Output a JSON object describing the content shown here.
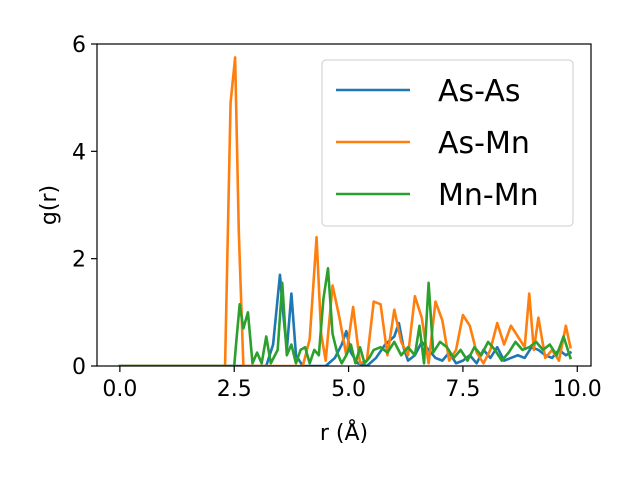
{
  "chart_data": {
    "type": "line",
    "xlabel": "r (Å)",
    "ylabel": "g(r)",
    "xlim": [
      -0.5,
      10.3
    ],
    "ylim": [
      0,
      6
    ],
    "x_ticks": [
      0.0,
      2.5,
      5.0,
      7.5,
      10.0
    ],
    "x_tick_labels": [
      "0.0",
      "2.5",
      "5.0",
      "7.5",
      "10.0"
    ],
    "y_ticks": [
      0,
      2,
      4,
      6
    ],
    "y_tick_labels": [
      "0",
      "2",
      "4",
      "6"
    ],
    "legend_position": "top-right",
    "grid": false,
    "series": [
      {
        "name": "As-As",
        "color": "#1f77b4",
        "x": [
          0,
          0.5,
          1.0,
          1.5,
          2.0,
          2.5,
          3.0,
          3.2,
          3.35,
          3.5,
          3.58,
          3.65,
          3.75,
          3.85,
          4.0,
          4.3,
          4.5,
          4.7,
          4.85,
          4.95,
          5.05,
          5.2,
          5.4,
          5.6,
          5.8,
          6.0,
          6.1,
          6.2,
          6.3,
          6.45,
          6.6,
          6.75,
          6.9,
          7.05,
          7.2,
          7.35,
          7.5,
          7.65,
          7.8,
          7.95,
          8.1,
          8.25,
          8.4,
          8.55,
          8.7,
          8.85,
          9.0,
          9.15,
          9.3,
          9.45,
          9.6,
          9.75,
          9.85
        ],
        "values": [
          0,
          0,
          0,
          0,
          0,
          0,
          0,
          0,
          0.4,
          1.7,
          0.9,
          0.3,
          1.35,
          0.2,
          0,
          0,
          0,
          0.15,
          0.4,
          0.65,
          0.25,
          0.05,
          0,
          0.15,
          0.4,
          0.55,
          0.8,
          0.35,
          0.1,
          0.2,
          0.45,
          0.3,
          0.15,
          0.1,
          0.25,
          0.05,
          0.1,
          0.2,
          0.05,
          0.3,
          0.15,
          0.35,
          0.1,
          0.15,
          0.2,
          0.15,
          0.35,
          0.3,
          0.2,
          0.15,
          0.3,
          0.2,
          0.25
        ]
      },
      {
        "name": "As-Mn",
        "color": "#ff7f0e",
        "x": [
          0,
          0.5,
          1.0,
          1.5,
          2.0,
          2.3,
          2.42,
          2.52,
          2.6,
          2.7,
          2.85,
          3.0,
          3.5,
          4.0,
          4.15,
          4.3,
          4.4,
          4.5,
          4.65,
          4.8,
          4.95,
          5.1,
          5.25,
          5.4,
          5.55,
          5.7,
          5.85,
          6.0,
          6.15,
          6.3,
          6.45,
          6.6,
          6.75,
          6.9,
          7.05,
          7.2,
          7.35,
          7.5,
          7.65,
          7.8,
          7.95,
          8.1,
          8.25,
          8.4,
          8.55,
          8.7,
          8.85,
          8.95,
          9.05,
          9.15,
          9.3,
          9.45,
          9.6,
          9.75,
          9.85
        ],
        "values": [
          0,
          0,
          0,
          0,
          0,
          0,
          4.9,
          5.75,
          2.5,
          0,
          0,
          0,
          0,
          0,
          0.5,
          2.4,
          0.6,
          0.1,
          1.5,
          0.9,
          0.2,
          1.1,
          0.05,
          0.1,
          1.2,
          1.15,
          0.2,
          1.05,
          0.45,
          0.2,
          1.3,
          0.9,
          0.05,
          1.2,
          0.85,
          0.1,
          0.3,
          0.95,
          0.75,
          0.25,
          0.05,
          0.3,
          0.8,
          0.4,
          0.75,
          0.55,
          0.35,
          1.35,
          0.3,
          0.9,
          0.15,
          0.3,
          0.1,
          0.75,
          0.35
        ]
      },
      {
        "name": "Mn-Mn",
        "color": "#2ca02c",
        "x": [
          0,
          0.5,
          1.0,
          1.5,
          2.0,
          2.5,
          2.55,
          2.62,
          2.7,
          2.8,
          2.9,
          3.0,
          3.1,
          3.2,
          3.3,
          3.45,
          3.55,
          3.65,
          3.75,
          3.85,
          3.95,
          4.05,
          4.15,
          4.25,
          4.35,
          4.45,
          4.55,
          4.65,
          4.75,
          4.85,
          4.95,
          5.05,
          5.15,
          5.25,
          5.35,
          5.45,
          5.55,
          5.7,
          5.85,
          6.0,
          6.15,
          6.3,
          6.45,
          6.55,
          6.65,
          6.75,
          6.85,
          7.0,
          7.15,
          7.3,
          7.45,
          7.6,
          7.75,
          7.9,
          8.05,
          8.2,
          8.35,
          8.5,
          8.65,
          8.8,
          8.95,
          9.1,
          9.25,
          9.4,
          9.55,
          9.7,
          9.85
        ],
        "values": [
          0,
          0,
          0,
          0,
          0,
          0,
          0.5,
          1.15,
          0.7,
          1.0,
          0.05,
          0.25,
          0.05,
          0.55,
          0.05,
          0.3,
          1.55,
          0.2,
          0.4,
          0.05,
          0.3,
          0.35,
          0.05,
          0.3,
          0.2,
          1.25,
          1.82,
          0.6,
          0.25,
          0.05,
          0.2,
          0.4,
          0.05,
          0.35,
          0.05,
          0.15,
          0.3,
          0.35,
          0.25,
          0.45,
          0.2,
          0.35,
          0.2,
          0.75,
          0.05,
          1.55,
          0.25,
          0.45,
          0.35,
          0.15,
          0.3,
          0.1,
          0.35,
          0.2,
          0.45,
          0.3,
          0.1,
          0.25,
          0.45,
          0.3,
          0.35,
          0.45,
          0.3,
          0.4,
          0.2,
          0.55,
          0.15
        ]
      }
    ]
  }
}
